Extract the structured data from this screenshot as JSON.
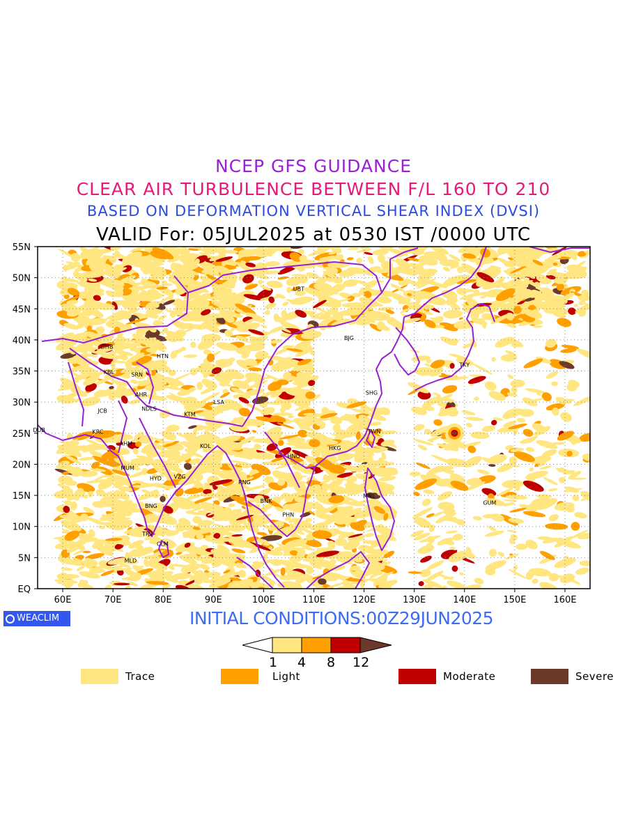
{
  "titles": {
    "line1": "NCEP GFS GUIDANCE",
    "line2": "CLEAR AIR TURBULENCE BETWEEN F/L 160 TO 210",
    "line3": "BASED ON DEFORMATION VERTICAL SHEAR INDEX (DVSI)",
    "line4": "VALID For: 05JUL2025 at 0530 IST /0000 UTC"
  },
  "map": {
    "lat_labels": [
      "55N",
      "50N",
      "45N",
      "40N",
      "35N",
      "30N",
      "25N",
      "20N",
      "15N",
      "10N",
      "5N",
      "EQ"
    ],
    "lon_labels": [
      "60E",
      "70E",
      "80E",
      "90E",
      "100E",
      "110E",
      "120E",
      "130E",
      "140E",
      "150E",
      "160E"
    ],
    "cities": [
      {
        "code": "UBT",
        "lon": 107,
        "lat": 47.9
      },
      {
        "code": "BJG",
        "lon": 117,
        "lat": 40.0
      },
      {
        "code": "TKY",
        "lon": 140,
        "lat": 35.7
      },
      {
        "code": "SHG",
        "lon": 121.5,
        "lat": 31.2
      },
      {
        "code": "TWN",
        "lon": 122,
        "lat": 25.0
      },
      {
        "code": "HKG",
        "lon": 114.2,
        "lat": 22.3
      },
      {
        "code": "HNO",
        "lon": 106,
        "lat": 21.0
      },
      {
        "code": "MNL",
        "lon": 121,
        "lat": 14.6
      },
      {
        "code": "GUM",
        "lon": 145,
        "lat": 13.5
      },
      {
        "code": "BNK",
        "lon": 100.5,
        "lat": 13.8
      },
      {
        "code": "PHN",
        "lon": 104.9,
        "lat": 11.6
      },
      {
        "code": "RNG",
        "lon": 96.2,
        "lat": 16.8
      },
      {
        "code": "LSA",
        "lon": 91.1,
        "lat": 29.7
      },
      {
        "code": "KTM",
        "lon": 85.3,
        "lat": 27.7
      },
      {
        "code": "KOL",
        "lon": 88.4,
        "lat": 22.6
      },
      {
        "code": "NDLS",
        "lon": 77.2,
        "lat": 28.6
      },
      {
        "code": "AHR",
        "lon": 75.6,
        "lat": 30.9
      },
      {
        "code": "SRN",
        "lon": 74.8,
        "lat": 34.1
      },
      {
        "code": "HTN",
        "lon": 79.9,
        "lat": 37.1
      },
      {
        "code": "DHB",
        "lon": 68.8,
        "lat": 38.6
      },
      {
        "code": "KBL",
        "lon": 69.2,
        "lat": 34.5
      },
      {
        "code": "JCB",
        "lon": 67.9,
        "lat": 28.3
      },
      {
        "code": "DUB",
        "lon": 55.3,
        "lat": 25.2
      },
      {
        "code": "KRC",
        "lon": 67.0,
        "lat": 24.9
      },
      {
        "code": "AHM",
        "lon": 72.6,
        "lat": 23.0
      },
      {
        "code": "MUM",
        "lon": 72.9,
        "lat": 19.1
      },
      {
        "code": "HYD",
        "lon": 78.5,
        "lat": 17.4
      },
      {
        "code": "VZG",
        "lon": 83.3,
        "lat": 17.7
      },
      {
        "code": "BNG",
        "lon": 77.6,
        "lat": 13.0
      },
      {
        "code": "TRV",
        "lon": 76.9,
        "lat": 8.5
      },
      {
        "code": "CLM",
        "lon": 79.9,
        "lat": 6.9
      },
      {
        "code": "MLD",
        "lon": 73.5,
        "lat": 4.2
      }
    ]
  },
  "initial_conditions": "INITIAL CONDITIONS:00Z29JUN2025",
  "logo_text": "WEACLIM",
  "colorbar": {
    "ticks": [
      "1",
      "4",
      "8",
      "12"
    ],
    "colors": [
      "#ffe680",
      "#ffa000",
      "#c00000",
      "#6b3a2a"
    ]
  },
  "legend": [
    {
      "label": "Trace",
      "color": "#ffe680"
    },
    {
      "label": "Light",
      "color": "#ffa000"
    },
    {
      "label": "Moderate",
      "color": "#c00000"
    },
    {
      "label": "Severe",
      "color": "#6b3a2a"
    }
  ],
  "colors": {
    "border": "#9a1fd0",
    "trace": "#ffe680",
    "light": "#ffa000",
    "moderate": "#c00000",
    "severe": "#6b3a2a"
  }
}
